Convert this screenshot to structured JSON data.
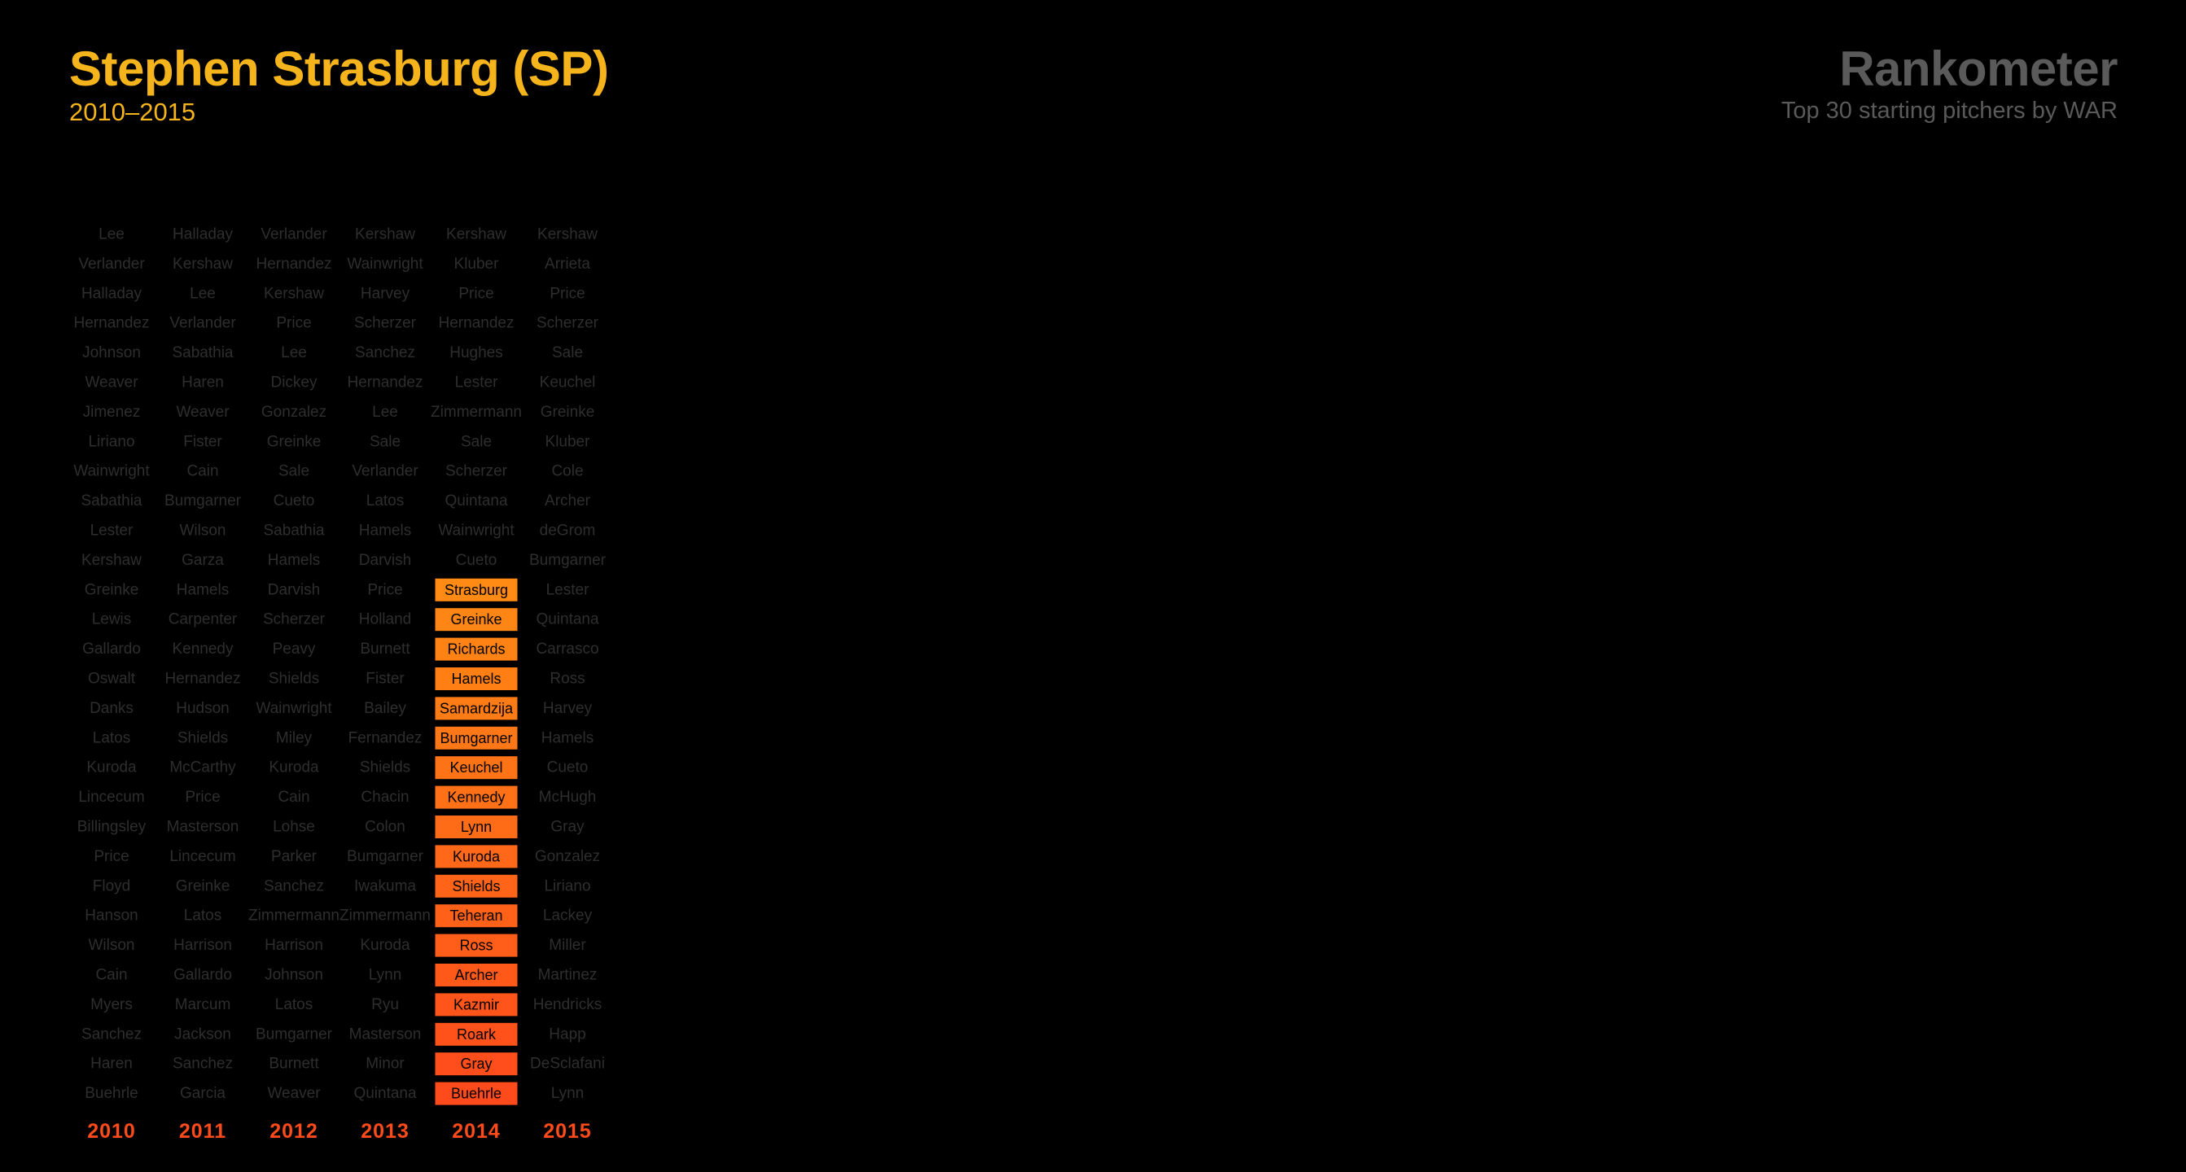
{
  "header": {
    "title": "Stephen Strasburg (SP)",
    "subtitle": "2010–2015",
    "brand": "Rankometer",
    "tagline": "Top 30 starting pitchers by WAR"
  },
  "colors": {
    "background": "#000000",
    "title": "#f5b41b",
    "muted_text": "#2e2e2e",
    "brand_text": "#5a5a5a",
    "year_label": "#ff4a1c",
    "highlight_start": "#ff8a14",
    "highlight_end": "#ff4a1c",
    "highlight_text": "#000000"
  },
  "chart_data": {
    "type": "table",
    "years": [
      "2010",
      "2011",
      "2012",
      "2013",
      "2014",
      "2015"
    ],
    "highlight_year": "2014",
    "highlight_start_rank": 13,
    "columns": [
      [
        "Lee",
        "Verlander",
        "Halladay",
        "Hernandez",
        "Johnson",
        "Weaver",
        "Jimenez",
        "Liriano",
        "Wainwright",
        "Sabathia",
        "Lester",
        "Kershaw",
        "Greinke",
        "Lewis",
        "Gallardo",
        "Oswalt",
        "Danks",
        "Latos",
        "Kuroda",
        "Lincecum",
        "Billingsley",
        "Price",
        "Floyd",
        "Hanson",
        "Wilson",
        "Cain",
        "Myers",
        "Sanchez",
        "Haren",
        "Buehrle"
      ],
      [
        "Halladay",
        "Kershaw",
        "Lee",
        "Verlander",
        "Sabathia",
        "Haren",
        "Weaver",
        "Fister",
        "Cain",
        "Bumgarner",
        "Wilson",
        "Garza",
        "Hamels",
        "Carpenter",
        "Kennedy",
        "Hernandez",
        "Hudson",
        "Shields",
        "McCarthy",
        "Price",
        "Masterson",
        "Lincecum",
        "Greinke",
        "Latos",
        "Harrison",
        "Gallardo",
        "Marcum",
        "Jackson",
        "Sanchez",
        "Garcia"
      ],
      [
        "Verlander",
        "Hernandez",
        "Kershaw",
        "Price",
        "Lee",
        "Dickey",
        "Gonzalez",
        "Greinke",
        "Sale",
        "Cueto",
        "Sabathia",
        "Hamels",
        "Darvish",
        "Scherzer",
        "Peavy",
        "Shields",
        "Wainwright",
        "Miley",
        "Kuroda",
        "Cain",
        "Lohse",
        "Parker",
        "Sanchez",
        "Zimmermann",
        "Harrison",
        "Johnson",
        "Latos",
        "Bumgarner",
        "Burnett",
        "Weaver"
      ],
      [
        "Kershaw",
        "Wainwright",
        "Harvey",
        "Scherzer",
        "Sanchez",
        "Hernandez",
        "Lee",
        "Sale",
        "Verlander",
        "Latos",
        "Hamels",
        "Darvish",
        "Price",
        "Holland",
        "Burnett",
        "Fister",
        "Bailey",
        "Fernandez",
        "Shields",
        "Chacin",
        "Colon",
        "Bumgarner",
        "Iwakuma",
        "Zimmermann",
        "Kuroda",
        "Lynn",
        "Ryu",
        "Masterson",
        "Minor",
        "Quintana"
      ],
      [
        "Kershaw",
        "Kluber",
        "Price",
        "Hernandez",
        "Hughes",
        "Lester",
        "Zimmermann",
        "Sale",
        "Scherzer",
        "Quintana",
        "Wainwright",
        "Cueto",
        "Strasburg",
        "Greinke",
        "Richards",
        "Hamels",
        "Samardzija",
        "Bumgarner",
        "Keuchel",
        "Kennedy",
        "Lynn",
        "Kuroda",
        "Shields",
        "Teheran",
        "Ross",
        "Archer",
        "Kazmir",
        "Roark",
        "Gray",
        "Buehrle"
      ],
      [
        "Kershaw",
        "Arrieta",
        "Price",
        "Scherzer",
        "Sale",
        "Keuchel",
        "Greinke",
        "Kluber",
        "Cole",
        "Archer",
        "deGrom",
        "Bumgarner",
        "Lester",
        "Quintana",
        "Carrasco",
        "Ross",
        "Harvey",
        "Hamels",
        "Cueto",
        "McHugh",
        "Gray",
        "Gonzalez",
        "Liriano",
        "Lackey",
        "Miller",
        "Martinez",
        "Hendricks",
        "Happ",
        "DeSclafani",
        "Lynn"
      ]
    ]
  }
}
